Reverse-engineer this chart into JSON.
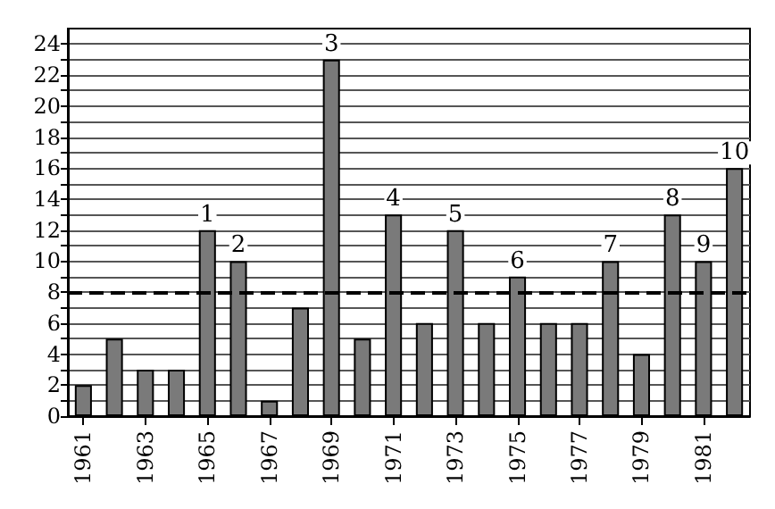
{
  "chart_data": {
    "type": "bar",
    "x": [
      1961,
      1962,
      1963,
      1964,
      1965,
      1966,
      1967,
      1968,
      1969,
      1970,
      1971,
      1972,
      1973,
      1974,
      1975,
      1976,
      1977,
      1978,
      1979,
      1980,
      1981,
      1982
    ],
    "values": [
      2,
      5,
      3,
      3,
      12,
      10,
      1,
      7,
      23,
      5,
      13,
      6,
      12,
      6,
      9,
      6,
      6,
      10,
      4,
      13,
      10,
      16
    ],
    "annotations": [
      {
        "text": "1",
        "x": 1965,
        "y": 12
      },
      {
        "text": "2",
        "x": 1966,
        "y": 10
      },
      {
        "text": "3",
        "x": 1969,
        "y": 23
      },
      {
        "text": "4",
        "x": 1971,
        "y": 13
      },
      {
        "text": "5",
        "x": 1973,
        "y": 12
      },
      {
        "text": "6",
        "x": 1975,
        "y": 9
      },
      {
        "text": "7",
        "x": 1978,
        "y": 10
      },
      {
        "text": "8",
        "x": 1980,
        "y": 13
      },
      {
        "text": "9",
        "x": 1981,
        "y": 10
      },
      {
        "text": "10",
        "x": 1982,
        "y": 16
      }
    ],
    "color": "#7a7a7a",
    "xlim": [
      1960.5,
      1982.5
    ],
    "xticks": [
      1961,
      1963,
      1965,
      1967,
      1969,
      1971,
      1973,
      1975,
      1977,
      1979,
      1981
    ],
    "ylim": [
      0,
      25
    ],
    "yticks": [
      0,
      {
        "value": 1,
        "label": null
      },
      2,
      {
        "value": 3,
        "label": null
      },
      4,
      {
        "value": 5,
        "label": null
      },
      6,
      {
        "value": 7,
        "label": null
      },
      8,
      {
        "value": 9,
        "label": null
      },
      10,
      {
        "value": 11,
        "label": null
      },
      12,
      {
        "value": 13,
        "label": null
      },
      14,
      {
        "value": 15,
        "label": null
      },
      16,
      {
        "value": 17,
        "label": null
      },
      18,
      {
        "value": 19,
        "label": null
      },
      20,
      {
        "value": 21,
        "label": null
      },
      22,
      {
        "value": 23,
        "label": null
      },
      24
    ],
    "grid": "y",
    "ref_lines": [
      {
        "axis": "y",
        "value": 8,
        "line_style": "dashed",
        "color": "#000000"
      }
    ]
  }
}
